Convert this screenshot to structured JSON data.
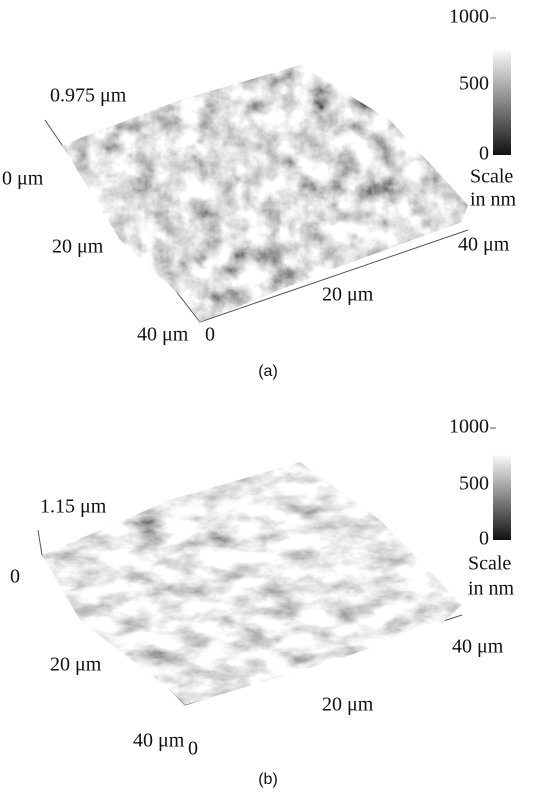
{
  "panels": [
    {
      "caption": "(a)",
      "height_label": "0.975 μm",
      "axes": {
        "y_start": "0 μm",
        "y_mid": "20 μm",
        "y_end": "40 μm",
        "x_start": "0",
        "x_mid": "20 μm",
        "x_end": "40 μm"
      },
      "scale": {
        "ticks": [
          "1000",
          "500",
          "0"
        ],
        "title": [
          "Scale",
          "in nm"
        ]
      }
    },
    {
      "caption": "(b)",
      "height_label": "1.15 μm",
      "axes": {
        "y_start": "0",
        "y_mid": "20 μm",
        "y_end": "40 μm",
        "x_start": "0",
        "x_mid": "20 μm",
        "x_end": "40 μm"
      },
      "scale": {
        "ticks": [
          "1000",
          "500",
          "0"
        ],
        "title": [
          "Scale",
          "in nm"
        ]
      }
    }
  ]
}
